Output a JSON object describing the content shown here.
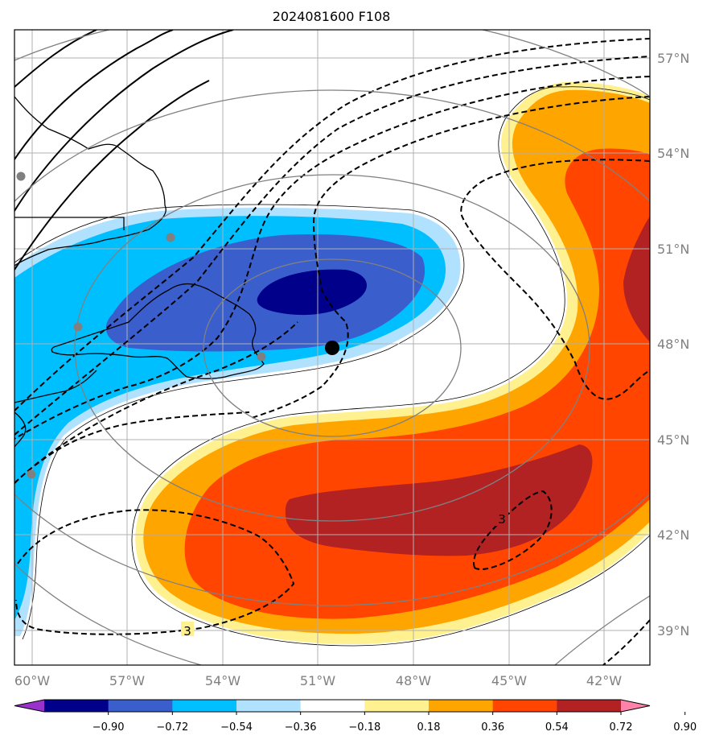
{
  "title": "2024081600 F108",
  "map": {
    "lon_labels": [
      "60°W",
      "57°W",
      "54°W",
      "51°W",
      "48°W",
      "45°W",
      "42°W"
    ],
    "lat_labels": [
      "57°N",
      "54°N",
      "51°N",
      "48°N",
      "45°N",
      "42°N",
      "39°N"
    ],
    "contour_labels": [
      "3",
      "3"
    ],
    "center_marker": {
      "lon": -50.5,
      "lat": 47.9
    }
  },
  "colorbar": {
    "ticks": [
      "−0.90",
      "−0.72",
      "−0.54",
      "−0.36",
      "−0.18",
      "0.18",
      "0.36",
      "0.54",
      "0.72",
      "0.90"
    ],
    "colors": [
      "#9932cc",
      "#00008b",
      "#3a5fcd",
      "#00bfff",
      "#b0e2ff",
      "#ffffff",
      "#fff090",
      "#ffa500",
      "#ff4500",
      "#b22222",
      "#ff82ab"
    ]
  }
}
